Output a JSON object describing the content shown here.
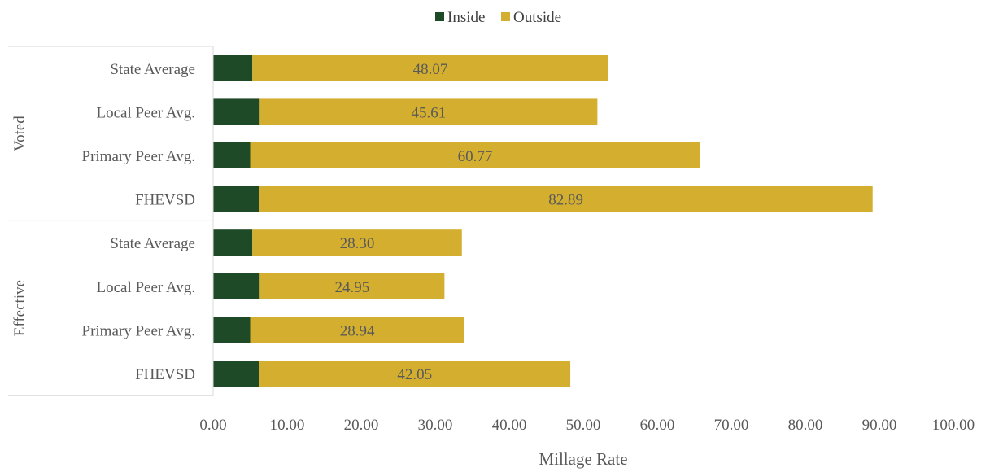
{
  "chart_data": {
    "type": "bar",
    "orientation": "horizontal",
    "stacked": true,
    "legend_position": "top",
    "grid": false,
    "xlabel": "Millage Rate",
    "xlim": [
      0,
      100
    ],
    "x_ticks": [
      "0.00",
      "10.00",
      "20.00",
      "30.00",
      "40.00",
      "50.00",
      "60.00",
      "70.00",
      "80.00",
      "90.00",
      "100.00"
    ],
    "groups": [
      {
        "name": "Voted",
        "categories": [
          "State Average",
          "Local Peer Avg.",
          "Primary Peer Avg.",
          "FHEVSD"
        ]
      },
      {
        "name": "Effective",
        "categories": [
          "State Average",
          "Local Peer Avg.",
          "Primary Peer Avg.",
          "FHEVSD"
        ]
      }
    ],
    "series": [
      {
        "name": "Inside",
        "color": "#1f4a28",
        "values": [
          5.3,
          6.3,
          5.0,
          6.2,
          5.3,
          6.3,
          5.0,
          6.2
        ]
      },
      {
        "name": "Outside",
        "color": "#d4af2f",
        "values": [
          48.07,
          45.61,
          60.77,
          82.89,
          28.3,
          24.95,
          28.94,
          42.05
        ],
        "labels": [
          "48.07",
          "45.61",
          "60.77",
          "82.89",
          "28.30",
          "24.95",
          "28.94",
          "42.05"
        ]
      }
    ]
  }
}
